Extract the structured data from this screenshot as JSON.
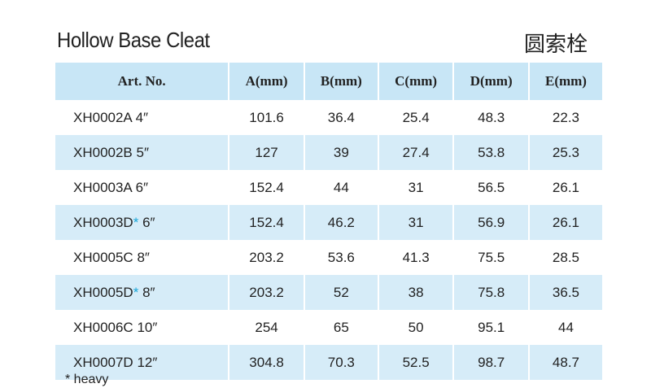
{
  "title": "Hollow Base Cleat",
  "title_cn": "圆索栓",
  "columns": [
    "Art. No.",
    "A(mm)",
    "B(mm)",
    "C(mm)",
    "D(mm)",
    "E(mm)"
  ],
  "rows": [
    {
      "art": "XH0002A",
      "star": "",
      "size": "4″",
      "a": "101.6",
      "b": "36.4",
      "c": "25.4",
      "d": "48.3",
      "e": "22.3"
    },
    {
      "art": "XH0002B",
      "star": "",
      "size": "5″",
      "a": "127",
      "b": "39",
      "c": "27.4",
      "d": "53.8",
      "e": "25.3"
    },
    {
      "art": "XH0003A",
      "star": "",
      "size": "6″",
      "a": "152.4",
      "b": "44",
      "c": "31",
      "d": "56.5",
      "e": "26.1"
    },
    {
      "art": "XH0003D",
      "star": "*",
      "size": "6″",
      "a": "152.4",
      "b": "46.2",
      "c": "31",
      "d": "56.9",
      "e": "26.1"
    },
    {
      "art": "XH0005C",
      "star": "",
      "size": "8″",
      "a": "203.2",
      "b": "53.6",
      "c": "41.3",
      "d": "75.5",
      "e": "28.5"
    },
    {
      "art": "XH0005D",
      "star": "*",
      "size": "8″",
      "a": "203.2",
      "b": "52",
      "c": "38",
      "d": "75.8",
      "e": "36.5"
    },
    {
      "art": "XH0006C",
      "star": "",
      "size": "10″",
      "a": "254",
      "b": "65",
      "c": "50",
      "d": "95.1",
      "e": "44"
    },
    {
      "art": "XH0007D",
      "star": "",
      "size": "12″",
      "a": "304.8",
      "b": "70.3",
      "c": "52.5",
      "d": "98.7",
      "e": "48.7"
    }
  ],
  "footnote": "* heavy",
  "colors": {
    "header_bg": "#c8e6f6",
    "row_alt_bg": "#d6ecf8",
    "star": "#1aa6d8"
  }
}
